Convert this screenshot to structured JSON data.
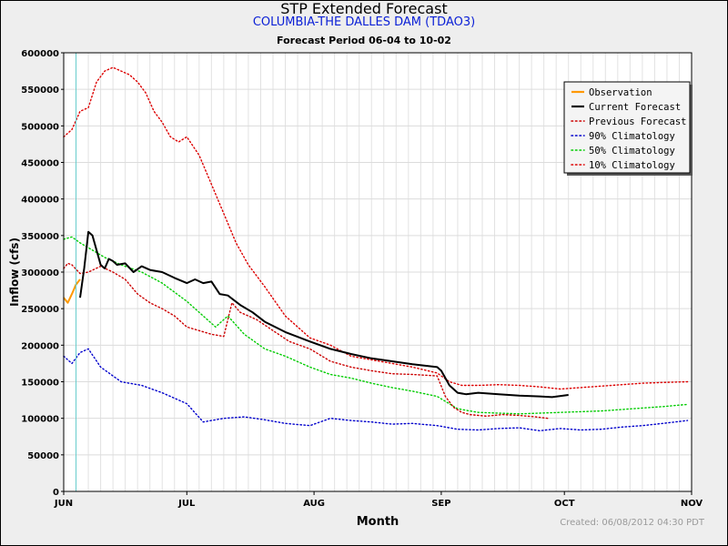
{
  "chart_data": {
    "type": "line",
    "title": "STP Extended Forecast",
    "subtitle": "COLUMBIA-THE DALLES DAM (TDAO3)",
    "period": "Forecast Period 06-04 to 10-02",
    "xlabel": "Month",
    "ylabel": "Inflow (cfs)",
    "footer": "Created: 06/08/2012 04:30 PDT",
    "xlim": [
      "2012-06-01",
      "2012-11-01"
    ],
    "ylim": [
      0,
      600000
    ],
    "x_ticks": [
      "JUN",
      "JUL",
      "AUG",
      "SEP",
      "OCT",
      "NOV"
    ],
    "y_ticks": [
      0,
      50000,
      100000,
      150000,
      200000,
      250000,
      300000,
      350000,
      400000,
      450000,
      500000,
      550000,
      600000
    ],
    "forecast_start": "2012-06-04",
    "grid": true,
    "legend": "top-right",
    "series": [
      {
        "name": "Observation",
        "color": "#ff9900",
        "style": "solid",
        "x": [
          "2012-06-01",
          "2012-06-02",
          "2012-06-03",
          "2012-06-04",
          "2012-06-05"
        ],
        "values": [
          265000,
          258000,
          270000,
          283000,
          290000
        ]
      },
      {
        "name": "Current Forecast",
        "color": "#000000",
        "style": "solid",
        "x": [
          "2012-06-05",
          "2012-06-06",
          "2012-06-07",
          "2012-06-08",
          "2012-06-09",
          "2012-06-10",
          "2012-06-11",
          "2012-06-12",
          "2012-06-13",
          "2012-06-14",
          "2012-06-16",
          "2012-06-18",
          "2012-06-20",
          "2012-06-22",
          "2012-06-25",
          "2012-06-28",
          "2012-07-01",
          "2012-07-03",
          "2012-07-05",
          "2012-07-07",
          "2012-07-09",
          "2012-07-11",
          "2012-07-14",
          "2012-07-17",
          "2012-07-20",
          "2012-07-25",
          "2012-07-31",
          "2012-08-05",
          "2012-08-10",
          "2012-08-15",
          "2012-08-20",
          "2012-08-25",
          "2012-08-31",
          "2012-09-01",
          "2012-09-03",
          "2012-09-05",
          "2012-09-07",
          "2012-09-10",
          "2012-09-15",
          "2012-09-20",
          "2012-09-25",
          "2012-09-28",
          "2012-10-02"
        ],
        "values": [
          265000,
          305000,
          355000,
          350000,
          330000,
          310000,
          305000,
          318000,
          315000,
          310000,
          312000,
          300000,
          308000,
          303000,
          300000,
          292000,
          285000,
          290000,
          285000,
          287000,
          270000,
          268000,
          255000,
          245000,
          232000,
          218000,
          205000,
          195000,
          188000,
          182000,
          178000,
          174000,
          170000,
          165000,
          145000,
          135000,
          133000,
          135000,
          133000,
          131000,
          130000,
          129000,
          132000
        ]
      },
      {
        "name": "Previous Forecast",
        "color": "#cc0000",
        "style": "dotted",
        "x": [
          "2012-06-01",
          "2012-06-02",
          "2012-06-03",
          "2012-06-05",
          "2012-06-07",
          "2012-06-10",
          "2012-06-13",
          "2012-06-16",
          "2012-06-19",
          "2012-06-22",
          "2012-06-25",
          "2012-06-28",
          "2012-07-01",
          "2012-07-04",
          "2012-07-07",
          "2012-07-10",
          "2012-07-12",
          "2012-07-14",
          "2012-07-18",
          "2012-07-22",
          "2012-07-26",
          "2012-07-31",
          "2012-08-05",
          "2012-08-10",
          "2012-08-15",
          "2012-08-20",
          "2012-08-25",
          "2012-08-31",
          "2012-09-02",
          "2012-09-04",
          "2012-09-06",
          "2012-09-08",
          "2012-09-12",
          "2012-09-16",
          "2012-09-20",
          "2012-09-24",
          "2012-09-27"
        ],
        "values": [
          305000,
          312000,
          310000,
          298000,
          300000,
          308000,
          300000,
          290000,
          270000,
          258000,
          250000,
          240000,
          225000,
          220000,
          215000,
          212000,
          258000,
          245000,
          235000,
          220000,
          205000,
          195000,
          178000,
          170000,
          165000,
          161000,
          160000,
          158000,
          130000,
          115000,
          108000,
          105000,
          103000,
          105000,
          104000,
          102000,
          100000
        ]
      },
      {
        "name": "90% Climatology",
        "color": "#0000cc",
        "style": "dotted",
        "x": [
          "2012-06-01",
          "2012-06-03",
          "2012-06-05",
          "2012-06-07",
          "2012-06-10",
          "2012-06-15",
          "2012-06-20",
          "2012-06-25",
          "2012-07-01",
          "2012-07-05",
          "2012-07-10",
          "2012-07-15",
          "2012-07-20",
          "2012-07-25",
          "2012-07-31",
          "2012-08-05",
          "2012-08-10",
          "2012-08-15",
          "2012-08-20",
          "2012-08-25",
          "2012-08-31",
          "2012-09-05",
          "2012-09-10",
          "2012-09-15",
          "2012-09-20",
          "2012-09-25",
          "2012-09-30",
          "2012-10-05",
          "2012-10-10",
          "2012-10-15",
          "2012-10-20",
          "2012-10-25",
          "2012-10-31"
        ],
        "values": [
          185000,
          175000,
          190000,
          195000,
          170000,
          150000,
          145000,
          135000,
          120000,
          95000,
          100000,
          102000,
          98000,
          93000,
          90000,
          100000,
          97000,
          95000,
          92000,
          93000,
          90000,
          85000,
          84000,
          86000,
          87000,
          83000,
          86000,
          84000,
          85000,
          88000,
          90000,
          93000,
          97000
        ]
      },
      {
        "name": "50% Climatology",
        "color": "#00cc00",
        "style": "dotted",
        "x": [
          "2012-06-01",
          "2012-06-03",
          "2012-06-05",
          "2012-06-08",
          "2012-06-11",
          "2012-06-15",
          "2012-06-20",
          "2012-06-25",
          "2012-07-01",
          "2012-07-05",
          "2012-07-08",
          "2012-07-11",
          "2012-07-15",
          "2012-07-20",
          "2012-07-25",
          "2012-07-31",
          "2012-08-05",
          "2012-08-10",
          "2012-08-15",
          "2012-08-20",
          "2012-08-25",
          "2012-08-31",
          "2012-09-05",
          "2012-09-10",
          "2012-09-15",
          "2012-09-20",
          "2012-09-25",
          "2012-09-30",
          "2012-10-05",
          "2012-10-10",
          "2012-10-15",
          "2012-10-20",
          "2012-10-25",
          "2012-10-31"
        ],
        "values": [
          345000,
          348000,
          340000,
          330000,
          320000,
          310000,
          300000,
          285000,
          260000,
          240000,
          225000,
          240000,
          215000,
          195000,
          185000,
          170000,
          160000,
          155000,
          148000,
          142000,
          137000,
          130000,
          113000,
          108000,
          107000,
          106000,
          107000,
          108000,
          109000,
          110000,
          112000,
          114000,
          116000,
          119000
        ]
      },
      {
        "name": "10% Climatology",
        "color": "#dd0000",
        "style": "dotted",
        "x": [
          "2012-06-01",
          "2012-06-03",
          "2012-06-05",
          "2012-06-07",
          "2012-06-09",
          "2012-06-11",
          "2012-06-13",
          "2012-06-15",
          "2012-06-17",
          "2012-06-19",
          "2012-06-21",
          "2012-06-23",
          "2012-06-25",
          "2012-06-27",
          "2012-06-29",
          "2012-07-01",
          "2012-07-04",
          "2012-07-07",
          "2012-07-10",
          "2012-07-13",
          "2012-07-16",
          "2012-07-20",
          "2012-07-25",
          "2012-07-31",
          "2012-08-05",
          "2012-08-10",
          "2012-08-15",
          "2012-08-20",
          "2012-08-25",
          "2012-08-31",
          "2012-09-03",
          "2012-09-06",
          "2012-09-10",
          "2012-09-15",
          "2012-09-20",
          "2012-09-25",
          "2012-09-30",
          "2012-10-05",
          "2012-10-10",
          "2012-10-15",
          "2012-10-20",
          "2012-10-25",
          "2012-10-31"
        ],
        "values": [
          485000,
          495000,
          520000,
          525000,
          560000,
          575000,
          580000,
          575000,
          570000,
          560000,
          545000,
          520000,
          505000,
          485000,
          478000,
          485000,
          460000,
          420000,
          380000,
          340000,
          310000,
          280000,
          240000,
          210000,
          200000,
          185000,
          180000,
          175000,
          170000,
          162000,
          150000,
          145000,
          145000,
          146000,
          145000,
          143000,
          140000,
          142000,
          144000,
          146000,
          148000,
          149000,
          150000
        ]
      }
    ]
  }
}
